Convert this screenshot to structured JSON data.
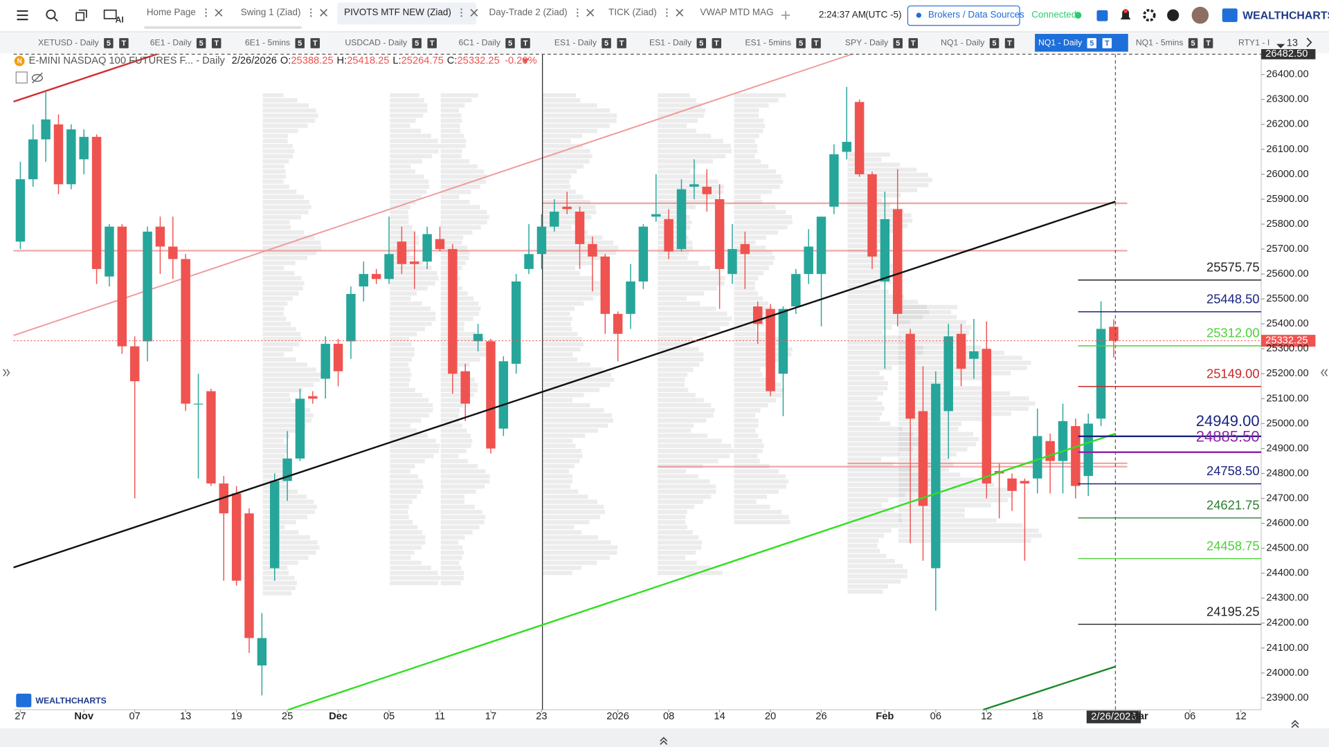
{
  "app": {
    "ai": "AI",
    "time": "2:24:37 AM",
    "timezone": "(UTC -5)",
    "brokers": "Brokers / Data Sources",
    "status": "Connected",
    "brand": "WEALTHCHARTS"
  },
  "tabs": [
    {
      "label": "Home Page"
    },
    {
      "label": "Swing 1 (Ziad)"
    },
    {
      "label": "PIVOTS MTF NEW (Ziad)",
      "active": true
    },
    {
      "label": "Day-Trade 2 (Ziad)"
    },
    {
      "label": "TICK (Ziad)"
    },
    {
      "label": "VWAP MTD MAG"
    }
  ],
  "chart_tabs": [
    {
      "label": "XETUSD - Daily",
      "badges": [
        "5",
        "T"
      ]
    },
    {
      "label": "6E1 - Daily",
      "badges": [
        "5",
        "T"
      ]
    },
    {
      "label": "6E1 - 5mins",
      "badges": [
        "5",
        "T"
      ]
    },
    {
      "label": "USDCAD - Daily",
      "badges": [
        "5",
        "T"
      ]
    },
    {
      "label": "6C1 - Daily",
      "badges": [
        "5",
        "T"
      ]
    },
    {
      "label": "ES1 - Daily",
      "badges": [
        "5",
        "T"
      ]
    },
    {
      "label": "ES1 - Daily",
      "badges": [
        "5",
        "T"
      ]
    },
    {
      "label": "ES1 - 5mins",
      "badges": [
        "5",
        "T"
      ]
    },
    {
      "label": "SPY - Daily",
      "badges": [
        "5",
        "T"
      ]
    },
    {
      "label": "NQ1 - Daily",
      "badges": [
        "5",
        "T"
      ]
    },
    {
      "label": "NQ1 - Daily",
      "badges": [
        "5",
        "T"
      ],
      "active": true
    },
    {
      "label": "NQ1 - 5mins",
      "badges": [
        "5",
        "T"
      ]
    },
    {
      "label": "RTY1 - I"
    }
  ],
  "chart_tab_count": 13,
  "chart_data": {
    "type": "candlestick",
    "symbol_icon": "N",
    "title": "E-MINI NASDAQ 100 FUTURES F... - Daily",
    "date": "2/26/2026",
    "ohlc": [
      {
        "label": "O:",
        "value": 25388.25
      },
      {
        "label": "H:",
        "value": 25418.25
      },
      {
        "label": "L:",
        "value": 25264.75
      },
      {
        "label": "C:",
        "value": 25332.25
      }
    ],
    "change": "-0.20%",
    "watermark": "WEALTHCHARTS",
    "up_color": "#26a69a",
    "down_color": "#ef5350",
    "open": [
      25730,
      25980,
      26140,
      26200,
      25960,
      26060,
      26150,
      25590,
      25790,
      25310,
      25330,
      25790,
      25710,
      25660,
      25080,
      25130,
      24760,
      24720,
      24640,
      24030,
      24420,
      24770,
      24860,
      25110,
      25180,
      25320,
      25330,
      25550,
      25600,
      25580,
      25730,
      25650,
      25650,
      25740,
      25700,
      25210,
      25330,
      25330,
      24980,
      25240,
      25620,
      25680,
      25790,
      25870,
      25850,
      25720,
      25670,
      25440,
      25440,
      25570,
      25830,
      25820,
      25700,
      25950,
      25950,
      25900,
      25600,
      25720,
      25470,
      25460,
      25200,
      25470,
      25600,
      25600,
      25870,
      26090,
      26290,
      26000,
      25570,
      25860,
      25360,
      25050,
      24420,
      25050,
      25360,
      25260,
      25300,
      24810,
      24780,
      24770,
      24780,
      24930,
      24850,
      24990,
      24790,
      25020,
      25388.25
    ],
    "high": [
      26050,
      26200,
      26330,
      26240,
      26200,
      26180,
      26160,
      25800,
      25800,
      25350,
      25790,
      25830,
      25830,
      25680,
      25200,
      25140,
      24790,
      24750,
      24660,
      24240,
      24800,
      24970,
      25140,
      25130,
      25350,
      25340,
      25550,
      25650,
      25620,
      25830,
      25790,
      25770,
      25790,
      25790,
      25720,
      25240,
      25400,
      25340,
      25270,
      25600,
      25800,
      25840,
      25900,
      25930,
      25870,
      25750,
      25680,
      25450,
      25640,
      25800,
      26000,
      25860,
      25980,
      26060,
      26020,
      25960,
      25800,
      25770,
      25490,
      25480,
      25470,
      25620,
      25780,
      25830,
      26120,
      26350,
      26300,
      26010,
      25930,
      26020,
      25380,
      25230,
      25210,
      25400,
      25400,
      25420,
      25410,
      24840,
      24800,
      24780,
      25060,
      24960,
      25080,
      25020,
      25040,
      25490,
      25418.25
    ],
    "low": [
      25700,
      25950,
      26050,
      25920,
      25940,
      26000,
      25560,
      25550,
      25280,
      24700,
      25250,
      25600,
      25580,
      25050,
      24780,
      24750,
      24370,
      24350,
      24080,
      23910,
      24370,
      24690,
      24850,
      25080,
      25100,
      25150,
      25260,
      25490,
      25560,
      25560,
      25600,
      25540,
      25620,
      25690,
      25120,
      25010,
      25290,
      24880,
      24950,
      25200,
      25600,
      25620,
      25770,
      25840,
      25620,
      25530,
      25360,
      25250,
      25380,
      25540,
      25810,
      25660,
      25690,
      25900,
      25850,
      25460,
      25560,
      25540,
      25320,
      25110,
      25030,
      25440,
      25560,
      25390,
      25840,
      26060,
      25990,
      25620,
      25220,
      25390,
      24520,
      24450,
      24250,
      24860,
      25150,
      25180,
      24700,
      24620,
      24650,
      24450,
      24720,
      24720,
      24720,
      24700,
      24710,
      24990,
      25264.75
    ],
    "close": [
      25980,
      26140,
      26220,
      25960,
      26180,
      26150,
      25620,
      25790,
      25310,
      25170,
      25770,
      25710,
      25660,
      25080,
      25080,
      24760,
      24640,
      24370,
      24140,
      24140,
      24770,
      24860,
      25100,
      25100,
      25320,
      25210,
      25520,
      25600,
      25580,
      25680,
      25640,
      25640,
      25760,
      25700,
      25200,
      25080,
      25360,
      24900,
      25250,
      25570,
      25680,
      25790,
      25850,
      25860,
      25720,
      25670,
      25440,
      25360,
      25570,
      25790,
      25840,
      25690,
      25940,
      25960,
      25920,
      25620,
      25700,
      25680,
      25400,
      25130,
      25460,
      25600,
      25710,
      25830,
      26080,
      26130,
      26000,
      25670,
      25820,
      25440,
      25020,
      24670,
      25160,
      25350,
      25220,
      25290,
      24760,
      24800,
      24730,
      24760,
      24950,
      24850,
      25010,
      24750,
      25000,
      25380,
      25332.25
    ],
    "xlim": [
      -0.533,
      97.6
    ],
    "xticks": [
      {
        "value": 0,
        "label": "27"
      },
      {
        "value": 5,
        "label": "Nov"
      },
      {
        "value": 9,
        "label": "07"
      },
      {
        "value": 13,
        "label": "13"
      },
      {
        "value": 17,
        "label": "19"
      },
      {
        "value": 21,
        "label": "25"
      },
      {
        "value": 25,
        "label": "Dec"
      },
      {
        "value": 29,
        "label": "05"
      },
      {
        "value": 33,
        "label": "11"
      },
      {
        "value": 37,
        "label": "17"
      },
      {
        "value": 41,
        "label": "23"
      },
      {
        "value": 47,
        "label": "2026"
      },
      {
        "value": 51,
        "label": "08"
      },
      {
        "value": 55,
        "label": "14"
      },
      {
        "value": 59,
        "label": "20"
      },
      {
        "value": 63,
        "label": "26"
      },
      {
        "value": 68,
        "label": "Feb"
      },
      {
        "value": 72,
        "label": "06"
      },
      {
        "value": 76,
        "label": "12"
      },
      {
        "value": 80,
        "label": "18"
      },
      {
        "value": 88,
        "label": "Mar"
      },
      {
        "value": 92,
        "label": "06"
      },
      {
        "value": 96,
        "label": "12"
      }
    ],
    "ylim": [
      23852.5,
      26481.5
    ],
    "yticks": [
      {
        "value": 23900,
        "label": "23900.00"
      },
      {
        "value": 24000,
        "label": "24000.00"
      },
      {
        "value": 24100,
        "label": "24100.00"
      },
      {
        "value": 24200,
        "label": "24200.00"
      },
      {
        "value": 24300,
        "label": "24300.00"
      },
      {
        "value": 24400,
        "label": "24400.00"
      },
      {
        "value": 24500,
        "label": "24500.00"
      },
      {
        "value": 24600,
        "label": "24600.00"
      },
      {
        "value": 24700,
        "label": "24700.00"
      },
      {
        "value": 24800,
        "label": "24800.00"
      },
      {
        "value": 24900,
        "label": "24900.00"
      },
      {
        "value": 25000,
        "label": "25000.00"
      },
      {
        "value": 25100,
        "label": "25100.00"
      },
      {
        "value": 25200,
        "label": "25200.00"
      },
      {
        "value": 25300,
        "label": "25300.00"
      },
      {
        "value": 25400,
        "label": "25400.00"
      },
      {
        "value": 25500,
        "label": "25500.00"
      },
      {
        "value": 25600,
        "label": "25600.00"
      },
      {
        "value": 25700,
        "label": "25700.00"
      },
      {
        "value": 25800,
        "label": "25800.00"
      },
      {
        "value": 25900,
        "label": "25900.00"
      },
      {
        "value": 26000,
        "label": "26000.00"
      },
      {
        "value": 26100,
        "label": "26100.00"
      },
      {
        "value": 26200,
        "label": "26200.00"
      },
      {
        "value": 26300,
        "label": "26300.00"
      },
      {
        "value": 26400,
        "label": "26400.00"
      }
    ],
    "levels": [
      {
        "value": 25575.75,
        "label": "25575.75",
        "color": "#222222"
      },
      {
        "value": 25448.5,
        "label": "25448.50",
        "color": "#1a237e"
      },
      {
        "value": 25312,
        "label": "25312.00",
        "color": "#4cd137"
      },
      {
        "value": 25149,
        "label": "25149.00",
        "color": "#c62828"
      },
      {
        "value": 24949,
        "label": "24949.00",
        "color": "#1a237e"
      },
      {
        "value": 24885.5,
        "label": "24885.50",
        "color": "#8e24aa"
      },
      {
        "value": 24758.5,
        "label": "24758.50",
        "color": "#1a237e"
      },
      {
        "value": 24621.75,
        "label": "24621.75",
        "color": "#2e7d32"
      },
      {
        "value": 24458.75,
        "label": "24458.75",
        "color": "#4cd137"
      },
      {
        "value": 24195.25,
        "label": "24195.25",
        "color": "#222222"
      }
    ],
    "last_price": 25332.25,
    "top_price": {
      "value": 26482.5,
      "label": "26482.50"
    }
  }
}
